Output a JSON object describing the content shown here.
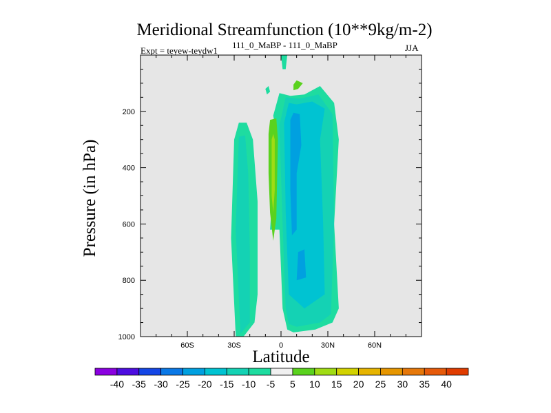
{
  "chart_data": {
    "type": "contour",
    "title": "Meridional Streamfunction (10**9kg/m-2)",
    "subtitle": "111_0_MaBP - 111_0_MaBP",
    "experiment": "Expt = teyew-teydw1",
    "season": "JJA",
    "xlabel": "Latitude",
    "ylabel": "Pressure (in hPa)",
    "xlim": [
      -90,
      90
    ],
    "ylim": [
      1000,
      0
    ],
    "xticks": [
      {
        "value": -60,
        "label": "60S"
      },
      {
        "value": -30,
        "label": "30S"
      },
      {
        "value": 0,
        "label": "0"
      },
      {
        "value": 30,
        "label": "30N"
      },
      {
        "value": 60,
        "label": "60N"
      }
    ],
    "yticks": [
      {
        "value": 200,
        "label": "200"
      },
      {
        "value": 400,
        "label": "400"
      },
      {
        "value": 600,
        "label": "600"
      },
      {
        "value": 800,
        "label": "800"
      },
      {
        "value": 1000,
        "label": "1000"
      }
    ],
    "background_color": "#e6e6e6",
    "colorbar": {
      "labels": [
        "-40",
        "-35",
        "-30",
        "-25",
        "-20",
        "-15",
        "-10",
        "-5",
        "5",
        "10",
        "15",
        "20",
        "25",
        "30",
        "35",
        "40"
      ],
      "colors": [
        "#8a00e0",
        "#4d0de0",
        "#1446e6",
        "#0a78e6",
        "#00a0e0",
        "#00c3d2",
        "#14d2b4",
        "#1edca0",
        "#f0f0f0",
        "#5ad21e",
        "#a0dc14",
        "#d2d200",
        "#e6b400",
        "#e69600",
        "#e6780a",
        "#e65a0a",
        "#e03c00"
      ]
    },
    "regions": [
      {
        "level": "-10 to -5",
        "color": "#1edca0",
        "points": [
          [
            -29,
            1000
          ],
          [
            -32,
            650
          ],
          [
            -30,
            300
          ],
          [
            -27,
            240
          ],
          [
            -22,
            240
          ],
          [
            -18,
            300
          ],
          [
            -15,
            520
          ],
          [
            -15,
            850
          ],
          [
            -17,
            950
          ],
          [
            -24,
            1000
          ]
        ]
      },
      {
        "level": "-10 to -5",
        "color": "#1edca0",
        "points": [
          [
            -10,
            120
          ],
          [
            -8,
            110
          ],
          [
            -7,
            130
          ],
          [
            -9,
            140
          ]
        ]
      },
      {
        "level": "-10 to -5",
        "color": "#1edca0",
        "points": [
          [
            0,
            0
          ],
          [
            4,
            0
          ],
          [
            3,
            50
          ],
          [
            1,
            50
          ]
        ]
      },
      {
        "level": "-10 to -5",
        "color": "#1edca0",
        "points": [
          [
            -7,
            620
          ],
          [
            -5,
            450
          ],
          [
            -3,
            280
          ],
          [
            -5,
            215
          ],
          [
            -1,
            135
          ],
          [
            6,
            145
          ],
          [
            15,
            140
          ],
          [
            25,
            110
          ],
          [
            34,
            170
          ],
          [
            37,
            300
          ],
          [
            34,
            600
          ],
          [
            37,
            900
          ],
          [
            33,
            950
          ],
          [
            22,
            975
          ],
          [
            8,
            985
          ],
          [
            4,
            975
          ],
          [
            1,
            900
          ],
          [
            -1,
            620
          ]
        ]
      },
      {
        "level": "-15 to -10",
        "color": "#14d2b4",
        "points": [
          [
            -26,
            990
          ],
          [
            -29,
            620
          ],
          [
            -27,
            290
          ],
          [
            -23,
            285
          ],
          [
            -21,
            420
          ],
          [
            -20,
            700
          ],
          [
            -20,
            950
          ]
        ]
      },
      {
        "level": "-15 to -10",
        "color": "#14d2b4",
        "points": [
          [
            3,
            900
          ],
          [
            1,
            600
          ],
          [
            -1,
            250
          ],
          [
            3,
            150
          ],
          [
            12,
            155
          ],
          [
            24,
            140
          ],
          [
            33,
            210
          ],
          [
            34,
            600
          ],
          [
            32,
            920
          ],
          [
            25,
            950
          ],
          [
            10,
            965
          ],
          [
            5,
            955
          ]
        ]
      },
      {
        "level": "-20 to -15",
        "color": "#00c3d2",
        "points": [
          [
            5,
            850
          ],
          [
            3,
            560
          ],
          [
            2,
            240
          ],
          [
            5,
            170
          ],
          [
            10,
            175
          ],
          [
            20,
            165
          ],
          [
            28,
            190
          ],
          [
            25,
            300
          ],
          [
            27,
            600
          ],
          [
            28,
            850
          ],
          [
            15,
            900
          ]
        ]
      },
      {
        "level": "-25 to -20",
        "color": "#00a0e0",
        "points": [
          [
            7,
            640
          ],
          [
            6,
            480
          ],
          [
            6,
            230
          ],
          [
            8,
            205
          ],
          [
            12,
            210
          ],
          [
            13,
            320
          ],
          [
            10,
            420
          ],
          [
            10,
            620
          ]
        ]
      },
      {
        "level": "-25 to -20",
        "color": "#00a0e0",
        "points": [
          [
            10,
            800
          ],
          [
            11,
            700
          ],
          [
            15,
            690
          ],
          [
            16,
            790
          ]
        ]
      },
      {
        "level": "5 to 10",
        "color": "#5ad21e",
        "points": [
          [
            -8,
            280
          ],
          [
            -7,
            230
          ],
          [
            -3,
            225
          ],
          [
            -2,
            300
          ],
          [
            -3,
            580
          ],
          [
            -5,
            660
          ],
          [
            -7,
            560
          ],
          [
            -8,
            420
          ]
        ]
      },
      {
        "level": "5 to 10",
        "color": "#5ad21e",
        "points": [
          [
            8,
            105
          ],
          [
            10,
            90
          ],
          [
            14,
            100
          ],
          [
            11,
            120
          ],
          [
            8,
            125
          ]
        ]
      },
      {
        "level": "10 to 15",
        "color": "#a0dc14",
        "points": [
          [
            -6,
            300
          ],
          [
            -5,
            280
          ],
          [
            -4,
            300
          ],
          [
            -4,
            480
          ],
          [
            -5,
            560
          ],
          [
            -6,
            500
          ]
        ]
      }
    ]
  }
}
